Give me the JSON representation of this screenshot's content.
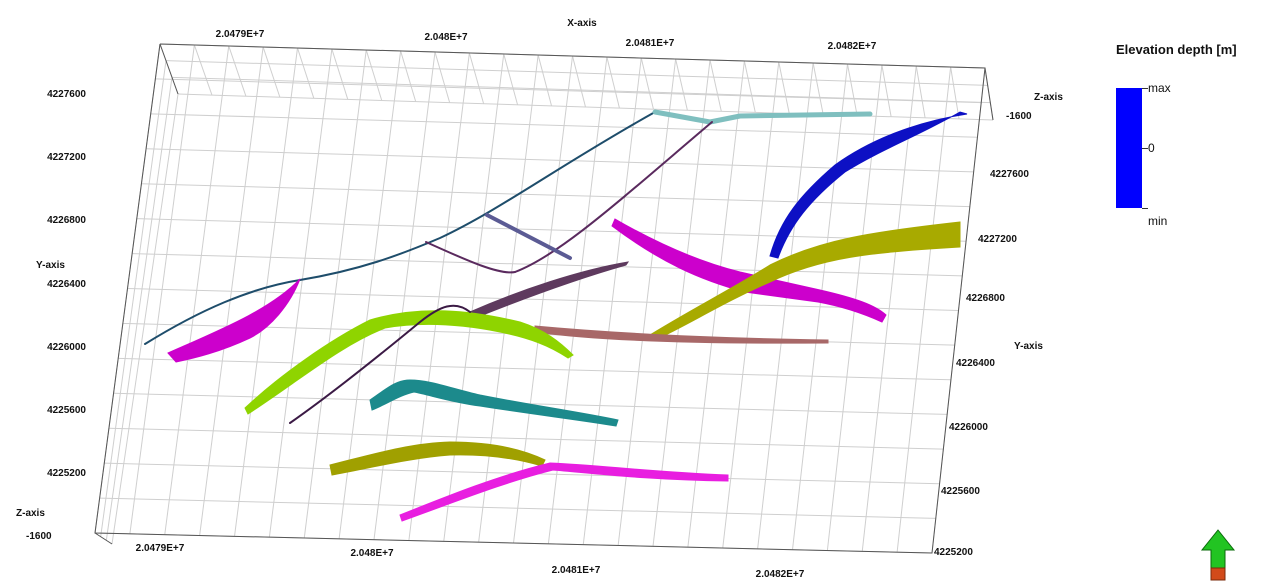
{
  "chart_data": {
    "type": "3d-line-surface",
    "axes": {
      "x": {
        "title": "X-axis",
        "ticks": [
          "2.0479E+7",
          "2.048E+7",
          "2.0481E+7",
          "2.0482E+7"
        ]
      },
      "y_left": {
        "title": "Y-axis",
        "ticks": [
          "4225200",
          "4225600",
          "4226000",
          "4226400",
          "4226800",
          "4227200",
          "4227600"
        ]
      },
      "y_right": {
        "title": "Y-axis",
        "ticks": [
          "4225200",
          "4225600",
          "4226000",
          "4226400",
          "4226800",
          "4227200",
          "4227600"
        ]
      },
      "z": {
        "title": "Z-axis",
        "ticks": [
          "-1600"
        ]
      }
    },
    "grid": true,
    "legend": {
      "title": "Elevation depth [m]",
      "labels": [
        "max",
        "0",
        "min"
      ],
      "color": "#0000ff",
      "placement": "right"
    },
    "traces": [
      {
        "color": "#1e4d6b"
      },
      {
        "color": "#7fbfbf"
      },
      {
        "color": "#5a2a5e"
      },
      {
        "color": "#5b5b94"
      },
      {
        "color": "#5a2a5e"
      },
      {
        "color": "#cc00cc"
      },
      {
        "color": "#cc00cc"
      },
      {
        "color": "#0d10c4"
      },
      {
        "color": "#a8aa00"
      },
      {
        "color": "#5e3a5e"
      },
      {
        "color": "#a86868"
      },
      {
        "color": "#8fd400"
      },
      {
        "color": "#3b1a45"
      },
      {
        "color": "#1c8a8c"
      },
      {
        "color": "#a0a000"
      },
      {
        "color": "#e81ee0"
      }
    ]
  }
}
